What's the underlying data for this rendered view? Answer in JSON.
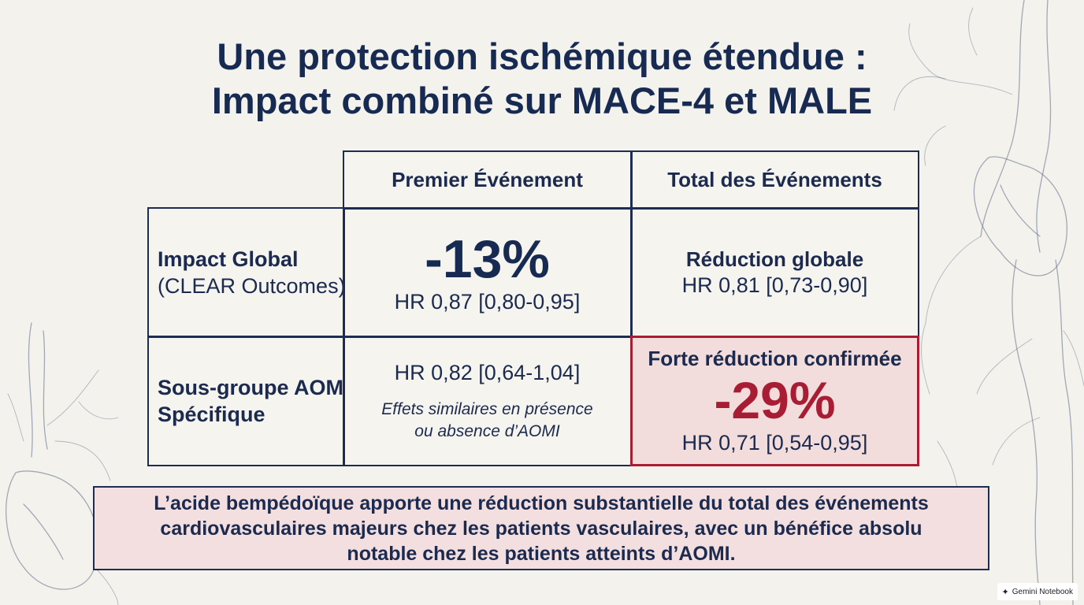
{
  "title": {
    "line1": "Une protection ischémique étendue :",
    "line2": "Impact combiné sur MACE-4 et MALE"
  },
  "table": {
    "columns": [
      "Premier Événement",
      "Total des Événements"
    ],
    "rows": [
      {
        "label_line1": "Impact Global",
        "label_line2": "(CLEAR Outcomes)",
        "first_event": {
          "value": "-13%",
          "hr": "HR 0,87 [0,80-0,95]"
        },
        "total_events": {
          "label": "Réduction globale",
          "hr": "HR 0,81 [0,73-0,90]"
        }
      },
      {
        "label_line1": "Sous-groupe AOMI",
        "label_line2": "Spécifique",
        "first_event": {
          "hr": "HR 0,82 [0,64-1,04]",
          "note_line1": "Effets similaires en présence",
          "note_line2": "ou absence d’AOMI"
        },
        "total_events": {
          "label": "Forte réduction confirmée",
          "value": "-29%",
          "hr": "HR 0,71 [0,54-0,95]"
        }
      }
    ]
  },
  "summary": {
    "line1": "L’acide bempédoïque apporte une réduction substantielle du total des événements",
    "line2": "cardiovasculaires majeurs chez les patients vasculaires, avec un bénéfice absolu",
    "line3": "notable chez les patients atteints d’AOMI."
  },
  "badge": {
    "label": "Gemini Notebook",
    "icon": "sparkle-icon"
  },
  "colors": {
    "navy": "#1b2a4e",
    "accent_red": "#a81d34",
    "highlight_fill": "#f3dcdc",
    "background": "#f4f2ec"
  }
}
